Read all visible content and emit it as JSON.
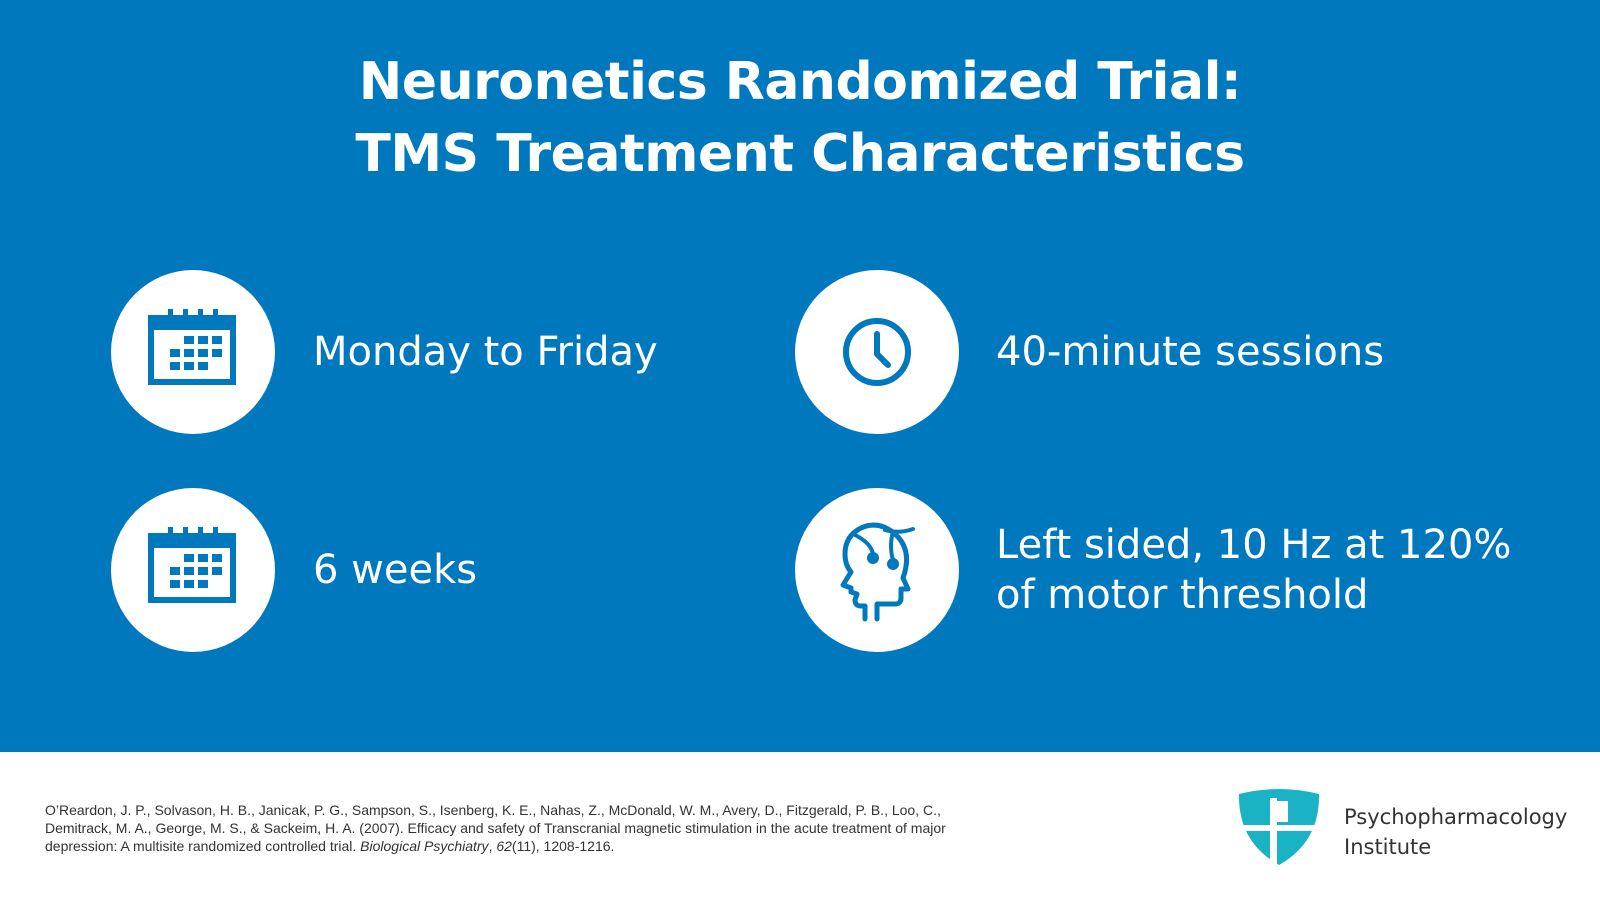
{
  "title": {
    "line1": "Neuronetics Randomized Trial:",
    "line2": "TMS Treatment Characteristics"
  },
  "features": [
    {
      "icon": "calendar-icon",
      "lines": [
        "Monday to Friday"
      ]
    },
    {
      "icon": "clock-icon",
      "lines": [
        "40-minute sessions"
      ]
    },
    {
      "icon": "calendar-icon",
      "lines": [
        "6 weeks"
      ]
    },
    {
      "icon": "head-electrodes-icon",
      "lines": [
        "Left sided, 10 Hz at 120%",
        "of motor threshold"
      ]
    }
  ],
  "citation": {
    "text_before": "O’Reardon, J. P., Solvason, H. B., Janicak, P. G., Sampson, S., Isenberg, K. E., Nahas, Z., McDonald, W. M., Avery, D., Fitzgerald, P. B., Loo, C., Demitrack, M. A., George, M. S., & Sackeim, H. A. (2007). Efficacy and safety of Transcranial magnetic stimulation in the acute treatment of major depression: A multisite randomized controlled trial. ",
    "journal": "Biological Psychiatry",
    "sep": ", ",
    "volume": "62",
    "text_after": "(11), 1208-1216."
  },
  "logo": {
    "line1": "Psychopharmacology",
    "line2": "Institute"
  },
  "colors": {
    "background_blue": "#0078bd",
    "icon_blue": "#0078bd",
    "logo_teal": "#1ab3c6",
    "text_white": "#ffffff"
  }
}
